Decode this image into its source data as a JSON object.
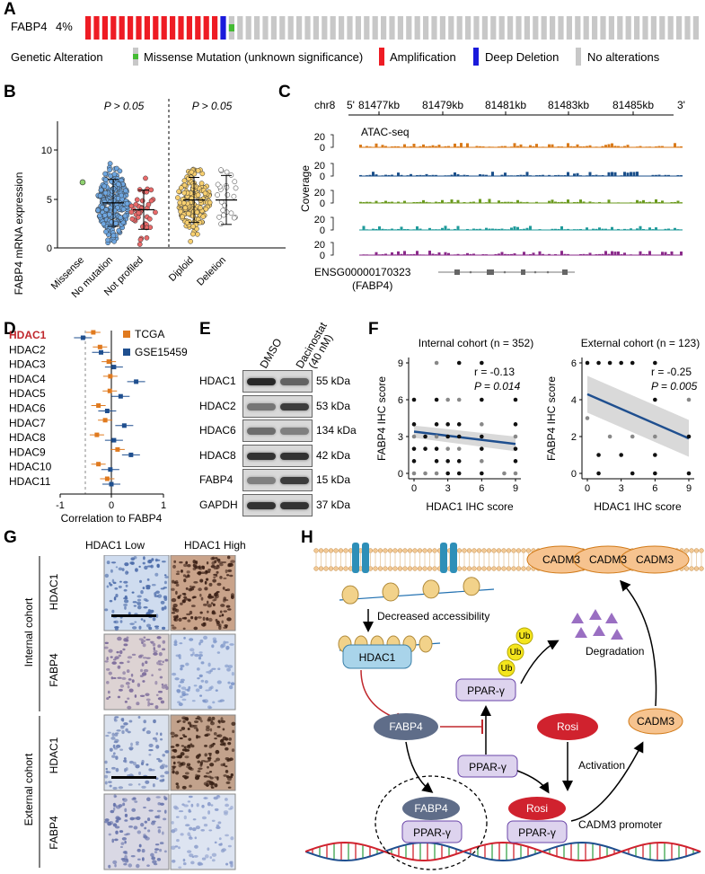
{
  "panelA": {
    "letter": "A",
    "gene": "FABP4",
    "pct": "4%",
    "legend_title": "Genetic Alteration",
    "legend": [
      {
        "label": "Missense Mutation (unknown significance)",
        "color": "#44bb33"
      },
      {
        "label": "Amplification",
        "color": "#ee1c24"
      },
      {
        "label": "Deep Deletion",
        "color": "#1a1adb"
      },
      {
        "label": "No alterations",
        "color": "#c8c8c8"
      }
    ]
  },
  "panelB": {
    "letter": "B",
    "ylabel": "FABP4 mRNA expression",
    "p_left": "P > 0.05",
    "p_right": "P > 0.05",
    "categories": [
      "Missense",
      "No mutation",
      "Not profiled",
      "Diploid",
      "Deletion"
    ]
  },
  "panelC": {
    "letter": "C",
    "chrom": "chr8",
    "five": "5'",
    "three": "3'",
    "ticks": [
      "81477kb",
      "81479kb",
      "81481kb",
      "81483kb",
      "81485kb"
    ],
    "track_label": "ATAC-seq",
    "ylabel": "Coverage",
    "tick20": "20",
    "tick0": "0",
    "gene_id": "ENSG00000170323",
    "gene_name": "(FABP4)",
    "colors": [
      "#d97a1a",
      "#1a4f8a",
      "#6b9a1f",
      "#1f9a9a",
      "#8a2a8a"
    ]
  },
  "panelD": {
    "letter": "D",
    "genes": [
      "HDAC1",
      "HDAC2",
      "HDAC3",
      "HDAC4",
      "HDAC5",
      "HDAC6",
      "HDAC7",
      "HDAC8",
      "HDAC9",
      "HDAC10",
      "HDAC11"
    ],
    "legend": [
      {
        "label": "TCGA",
        "color": "#e07a1f"
      },
      {
        "label": "GSE15459",
        "color": "#1f4f8f"
      }
    ],
    "xticks": [
      "-1",
      "0",
      "1"
    ],
    "xlabel": "Correlation to FABP4"
  },
  "panelE": {
    "letter": "E",
    "col1": "DMSO",
    "col2a": "Dacinostat",
    "col2b": "(40 nM)",
    "rows": [
      {
        "protein": "HDAC1",
        "kda": "55 kDa"
      },
      {
        "protein": "HDAC2",
        "kda": "53 kDa"
      },
      {
        "protein": "HDAC6",
        "kda": "134 kDa"
      },
      {
        "protein": "HDAC8",
        "kda": "42 kDa"
      },
      {
        "protein": "FABP4",
        "kda": "15 kDa"
      },
      {
        "protein": "GAPDH",
        "kda": "37 kDa"
      }
    ]
  },
  "panelF": {
    "letter": "F",
    "left": {
      "title": "Internal cohort (n = 352)",
      "r": "r = -0.13",
      "p": "P = 0.014",
      "ylabel": "FABP4  IHC score",
      "xlabel": "HDAC1 IHC score",
      "xticks": [
        "0",
        "3",
        "6",
        "9"
      ],
      "yticks": [
        "0",
        "3",
        "6",
        "9"
      ]
    },
    "right": {
      "title": "External cohort (n = 123)",
      "r": "r = -0.25",
      "p": "P = 0.005",
      "ylabel": "FABP4  IHC score",
      "xlabel": "HDAC1 IHC score",
      "xticks": [
        "0",
        "3",
        "6",
        "9"
      ],
      "yticks": [
        "0",
        "2",
        "4",
        "6"
      ]
    }
  },
  "panelG": {
    "letter": "G",
    "col_low": "HDAC1 Low",
    "col_high": "HDAC1 High",
    "cohort_internal": "Internal cohort",
    "cohort_external": "External cohort",
    "row_hdac1": "HDAC1",
    "row_fabp4": "FABP4"
  },
  "panelH": {
    "letter": "H",
    "cadm3": "CADM3",
    "decreased": "Decreased accessibility",
    "hdac1": "HDAC1",
    "pparg": "PPAR-γ",
    "ub": "Ub",
    "degradation": "Degradation",
    "fabp4": "FABP4",
    "rosi": "Rosi",
    "activation": "Activation",
    "promoter": "CADM3 promoter"
  }
}
